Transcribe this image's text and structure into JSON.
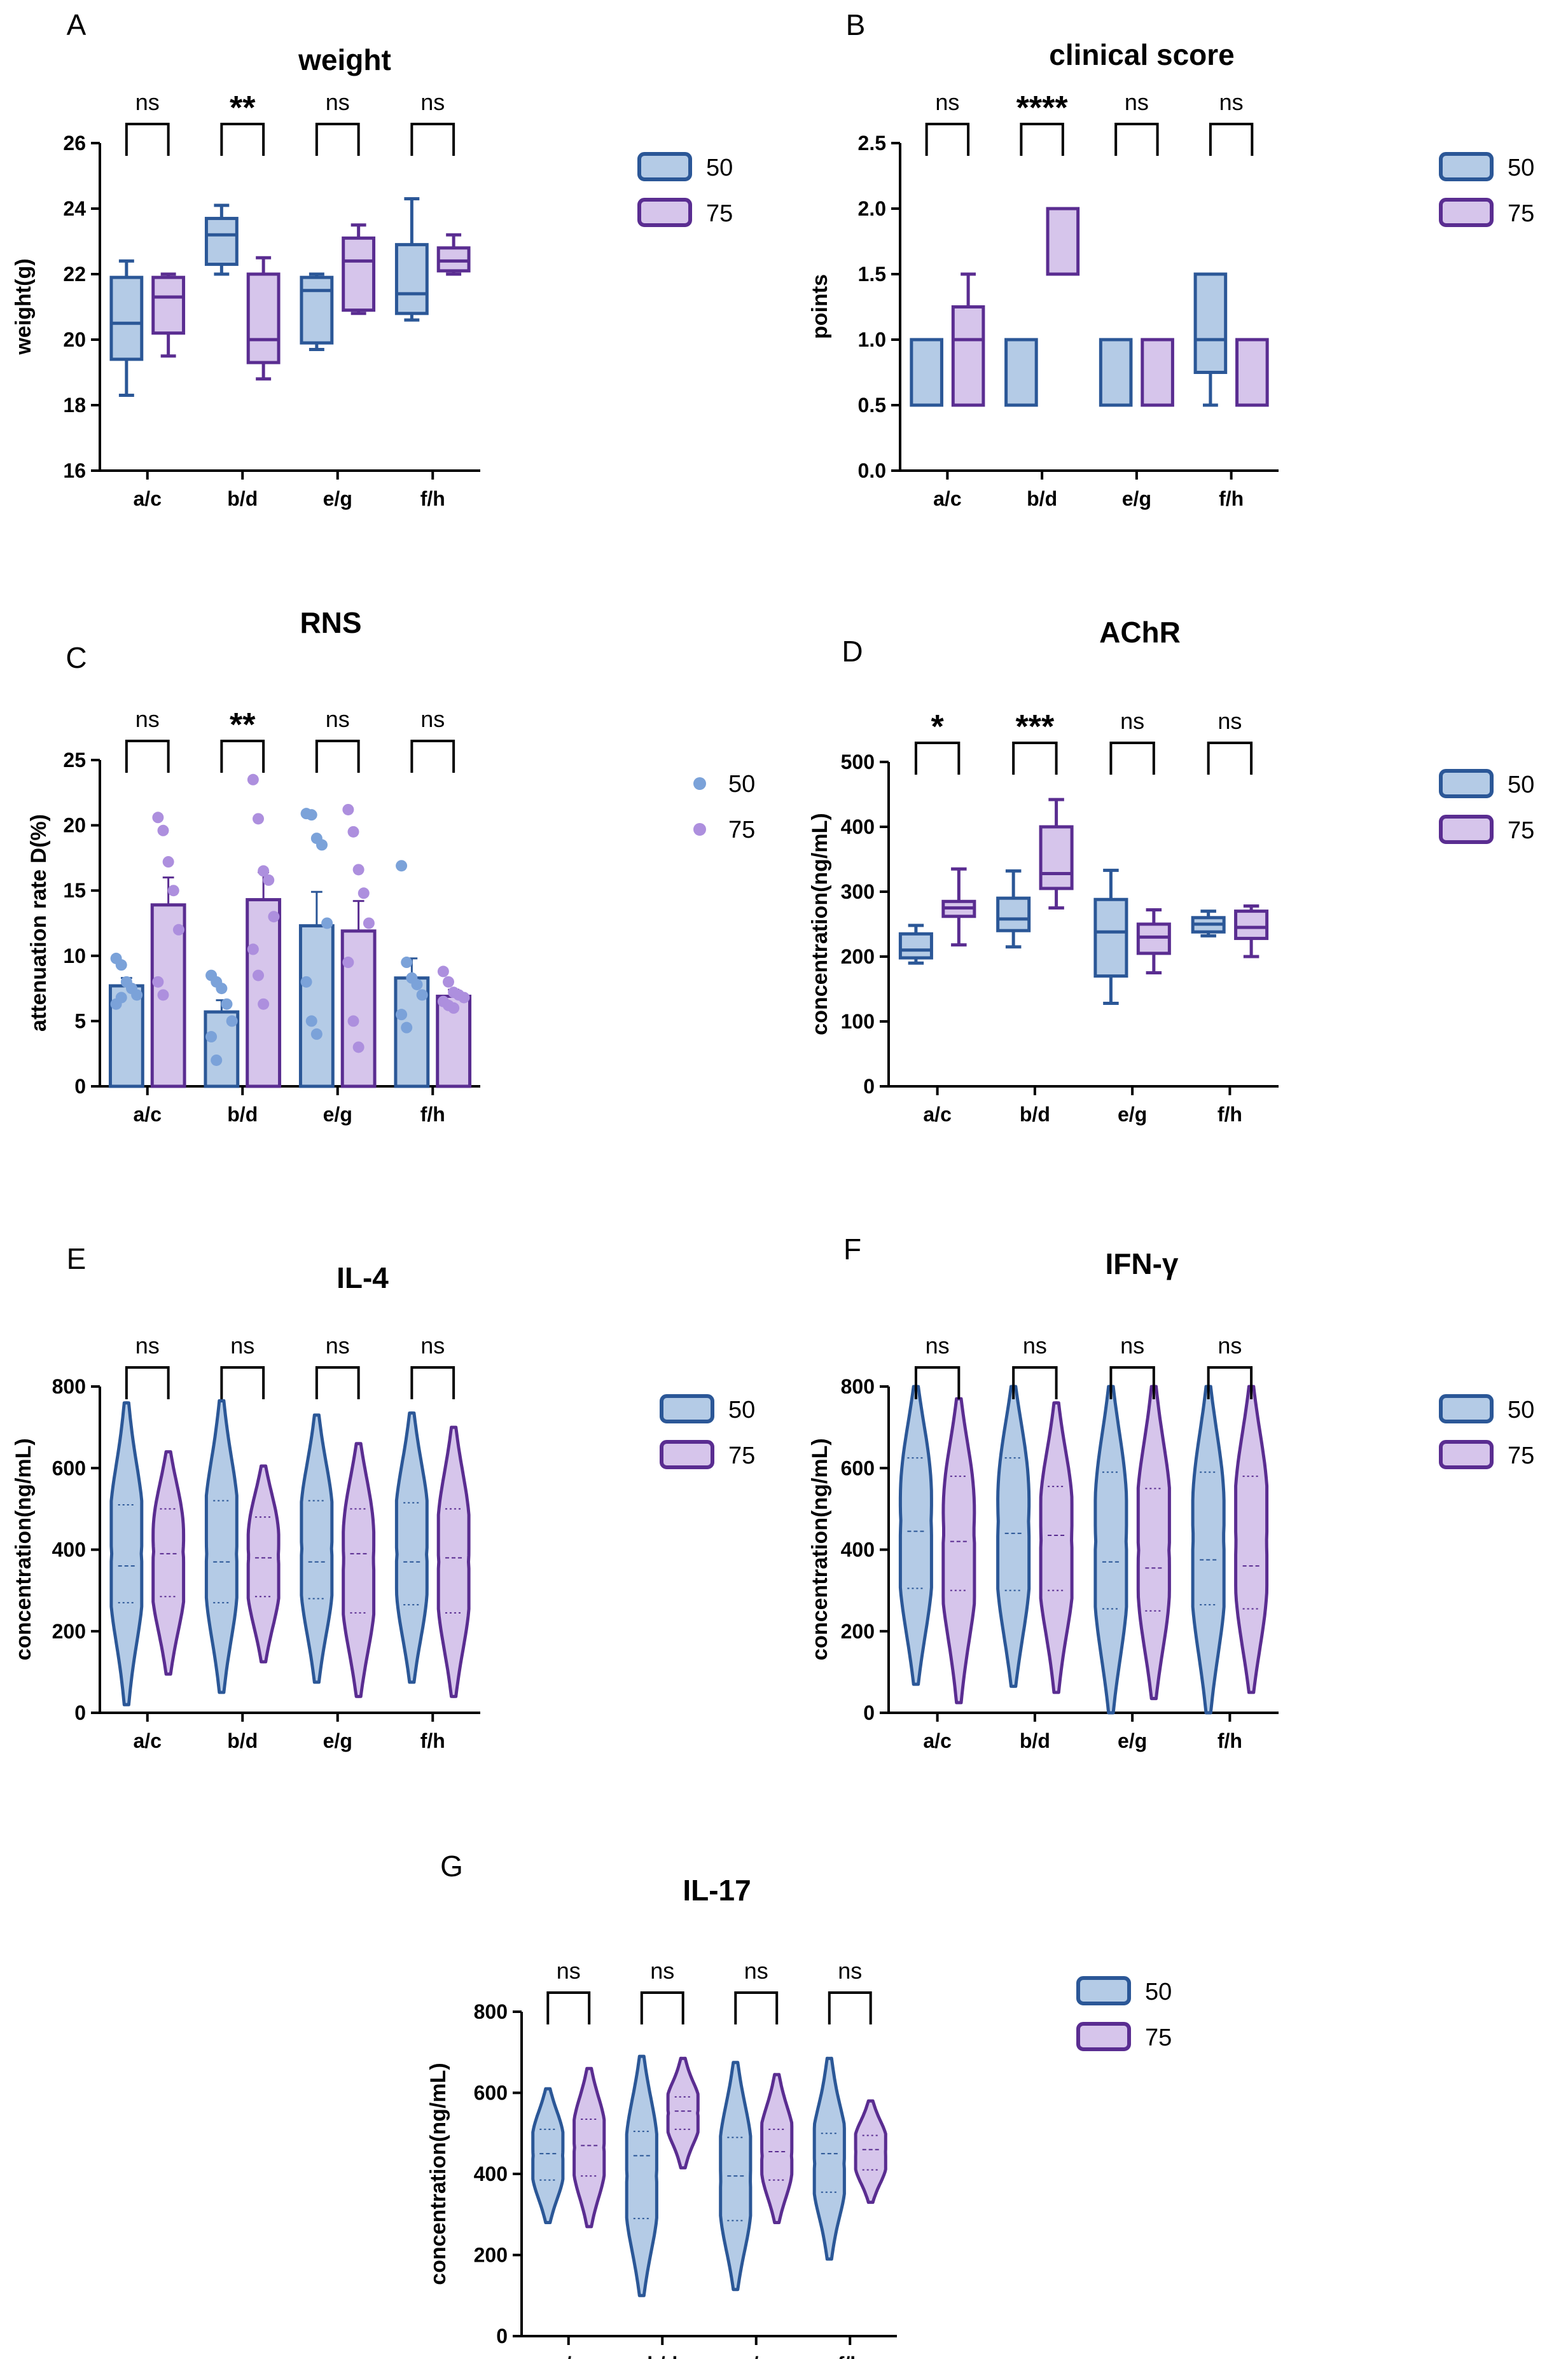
{
  "colors": {
    "s50_stroke": "#2b5797",
    "s50_fill": "#b4cbe6",
    "s75_stroke": "#5a2d91",
    "s75_fill": "#d6c5eb",
    "s50_dot": "#7ba2d9",
    "s75_dot": "#ad8fde",
    "axis": "#000000"
  },
  "chart_data": [
    {
      "letter": "A",
      "title": "weight",
      "type": "box",
      "ylabel": "weight(g)",
      "ylim": [
        16,
        26
      ],
      "yticks": [
        "16",
        "18",
        "20",
        "22",
        "24",
        "26"
      ],
      "categories": [
        "a/c",
        "b/d",
        "e/g",
        "f/h"
      ],
      "significance": [
        "ns",
        "**",
        "ns",
        "ns"
      ],
      "legend": [
        "50",
        "75"
      ],
      "series": [
        {
          "name": "50",
          "boxes": [
            [
              18.3,
              19.4,
              20.5,
              21.9,
              22.4
            ],
            [
              22.0,
              22.3,
              23.2,
              23.7,
              24.1
            ],
            [
              19.7,
              19.9,
              21.5,
              21.9,
              22.0
            ],
            [
              20.6,
              20.8,
              21.4,
              22.9,
              24.3
            ]
          ]
        },
        {
          "name": "75",
          "boxes": [
            [
              19.5,
              20.2,
              21.3,
              21.9,
              22.0
            ],
            [
              18.8,
              19.3,
              20.0,
              22.0,
              22.5
            ],
            [
              20.8,
              20.9,
              22.4,
              23.1,
              23.5
            ],
            [
              22.0,
              22.1,
              22.4,
              22.8,
              23.2
            ]
          ]
        }
      ]
    },
    {
      "letter": "B",
      "title": "clinical score",
      "type": "box",
      "ylabel": "points",
      "ylim": [
        0,
        2.5
      ],
      "yticks": [
        "0.0",
        "0.5",
        "1.0",
        "1.5",
        "2.0",
        "2.5"
      ],
      "categories": [
        "a/c",
        "b/d",
        "e/g",
        "f/h"
      ],
      "significance": [
        "ns",
        "****",
        "ns",
        "ns"
      ],
      "legend": [
        "50",
        "75"
      ],
      "series": [
        {
          "name": "50",
          "boxes": [
            [
              0.5,
              0.5,
              0.5,
              1.0,
              1.0
            ],
            [
              0.5,
              0.5,
              1.0,
              1.0,
              1.0
            ],
            [
              0.5,
              0.5,
              1.0,
              1.0,
              1.0
            ],
            [
              0.5,
              0.75,
              1.0,
              1.5,
              1.5
            ]
          ]
        },
        {
          "name": "75",
          "boxes": [
            [
              0.5,
              0.5,
              1.0,
              1.25,
              1.5
            ],
            [
              1.5,
              1.5,
              2.0,
              2.0,
              2.0
            ],
            [
              0.5,
              0.5,
              1.0,
              1.0,
              1.0
            ],
            [
              0.5,
              0.5,
              1.0,
              1.0,
              1.0
            ]
          ]
        }
      ]
    },
    {
      "letter": "C",
      "title": "RNS",
      "type": "bar",
      "ylabel": "attenuation rate D(%)",
      "ylim": [
        0,
        25
      ],
      "yticks": [
        "0",
        "5",
        "10",
        "15",
        "20",
        "25"
      ],
      "categories": [
        "a/c",
        "b/d",
        "e/g",
        "f/h"
      ],
      "significance": [
        "ns",
        "**",
        "ns",
        "ns"
      ],
      "legend": [
        "50",
        "75"
      ],
      "series": [
        {
          "name": "50",
          "values": [
            7.7,
            5.7,
            12.3,
            8.3
          ],
          "sem": [
            0.6,
            0.9,
            2.6,
            1.5
          ],
          "points": [
            [
              9.8,
              9.3,
              8.0,
              7.5,
              7.0,
              6.3,
              6.8
            ],
            [
              8.5,
              8.0,
              7.5,
              6.3,
              5.0,
              3.8,
              2.0
            ],
            [
              20.9,
              20.8,
              19.0,
              18.5,
              12.5,
              8.0,
              5.0,
              4.0
            ],
            [
              16.9,
              9.5,
              8.3,
              7.8,
              7.0,
              5.5,
              4.5
            ]
          ]
        },
        {
          "name": "75",
          "values": [
            13.9,
            14.3,
            11.9,
            6.9
          ],
          "sem": [
            2.1,
            2.1,
            2.3,
            0.5
          ],
          "points": [
            [
              20.6,
              19.6,
              17.2,
              15.0,
              12.0,
              8.0,
              7.0
            ],
            [
              23.5,
              20.5,
              16.5,
              15.8,
              13.0,
              10.5,
              8.5,
              6.3
            ],
            [
              21.2,
              19.5,
              16.6,
              14.8,
              12.5,
              9.5,
              5.0,
              3.0
            ],
            [
              8.8,
              8.0,
              7.2,
              7.0,
              6.8,
              6.5,
              6.2,
              6.0
            ]
          ]
        }
      ]
    },
    {
      "letter": "D",
      "title": "AChR",
      "type": "box",
      "ylabel": "concentration(ng/mL)",
      "ylim": [
        0,
        500
      ],
      "yticks": [
        "0",
        "100",
        "200",
        "300",
        "400",
        "500"
      ],
      "categories": [
        "a/c",
        "b/d",
        "e/g",
        "f/h"
      ],
      "significance": [
        "*",
        "***",
        "ns",
        "ns"
      ],
      "legend": [
        "50",
        "75"
      ],
      "series": [
        {
          "name": "50",
          "boxes": [
            [
              190,
              198,
              210,
              235,
              248
            ],
            [
              215,
              240,
              258,
              290,
              332
            ],
            [
              128,
              170,
              238,
              288,
              333
            ],
            [
              232,
              238,
              250,
              260,
              270
            ]
          ]
        },
        {
          "name": "75",
          "boxes": [
            [
              218,
              262,
              275,
              285,
              335
            ],
            [
              275,
              305,
              328,
              400,
              442
            ],
            [
              175,
              205,
              230,
              250,
              272
            ],
            [
              200,
              228,
              245,
              270,
              278
            ]
          ]
        }
      ]
    },
    {
      "letter": "E",
      "title": "IL-4",
      "type": "violin",
      "ylabel": "concentration(ng/mL)",
      "ylim": [
        0,
        800
      ],
      "yticks": [
        "0",
        "200",
        "400",
        "600",
        "800"
      ],
      "categories": [
        "a/c",
        "b/d",
        "e/g",
        "f/h"
      ],
      "significance": [
        "ns",
        "ns",
        "ns",
        "ns"
      ],
      "legend": [
        "50",
        "75"
      ],
      "series": [
        {
          "name": "50",
          "violins": [
            [
              20,
              760,
              270,
              360,
              510
            ],
            [
              50,
              765,
              270,
              370,
              520
            ],
            [
              75,
              730,
              280,
              370,
              520
            ],
            [
              75,
              735,
              265,
              370,
              515
            ]
          ]
        },
        {
          "name": "75",
          "violins": [
            [
              95,
              640,
              285,
              390,
              500
            ],
            [
              125,
              605,
              285,
              380,
              480
            ],
            [
              40,
              660,
              245,
              390,
              500
            ],
            [
              40,
              700,
              245,
              380,
              500
            ]
          ]
        }
      ]
    },
    {
      "letter": "F",
      "title": "IFN-γ",
      "type": "violin",
      "ylabel": "concentration(ng/mL)",
      "ylim": [
        0,
        800
      ],
      "yticks": [
        "0",
        "200",
        "400",
        "600",
        "800"
      ],
      "categories": [
        "a/c",
        "b/d",
        "e/g",
        "f/h"
      ],
      "significance": [
        "ns",
        "ns",
        "ns",
        "ns"
      ],
      "legend": [
        "50",
        "75"
      ],
      "series": [
        {
          "name": "50",
          "violins": [
            [
              70,
              800,
              305,
              445,
              625
            ],
            [
              65,
              800,
              300,
              440,
              625
            ],
            [
              0,
              800,
              255,
              370,
              590
            ],
            [
              0,
              800,
              265,
              375,
              590
            ]
          ]
        },
        {
          "name": "75",
          "violins": [
            [
              25,
              770,
              300,
              420,
              580
            ],
            [
              50,
              760,
              300,
              435,
              555
            ],
            [
              35,
              800,
              250,
              355,
              550
            ],
            [
              50,
              800,
              255,
              360,
              580
            ]
          ]
        }
      ]
    },
    {
      "letter": "G",
      "title": "IL-17",
      "type": "violin",
      "ylabel": "concentration(ng/mL)",
      "ylim": [
        0,
        800
      ],
      "yticks": [
        "0",
        "200",
        "400",
        "600",
        "800"
      ],
      "categories": [
        "a/c",
        "b/d",
        "e/g",
        "f/h"
      ],
      "significance": [
        "ns",
        "ns",
        "ns",
        "ns"
      ],
      "legend": [
        "50",
        "75"
      ],
      "series": [
        {
          "name": "50",
          "violins": [
            [
              280,
              610,
              385,
              450,
              510
            ],
            [
              100,
              690,
              290,
              445,
              505
            ],
            [
              115,
              675,
              285,
              395,
              490
            ],
            [
              190,
              685,
              355,
              450,
              500
            ]
          ]
        },
        {
          "name": "75",
          "violins": [
            [
              270,
              660,
              395,
              470,
              535
            ],
            [
              415,
              685,
              510,
              555,
              590
            ],
            [
              280,
              645,
              385,
              455,
              510
            ],
            [
              330,
              580,
              410,
              460,
              495
            ]
          ]
        }
      ]
    }
  ]
}
